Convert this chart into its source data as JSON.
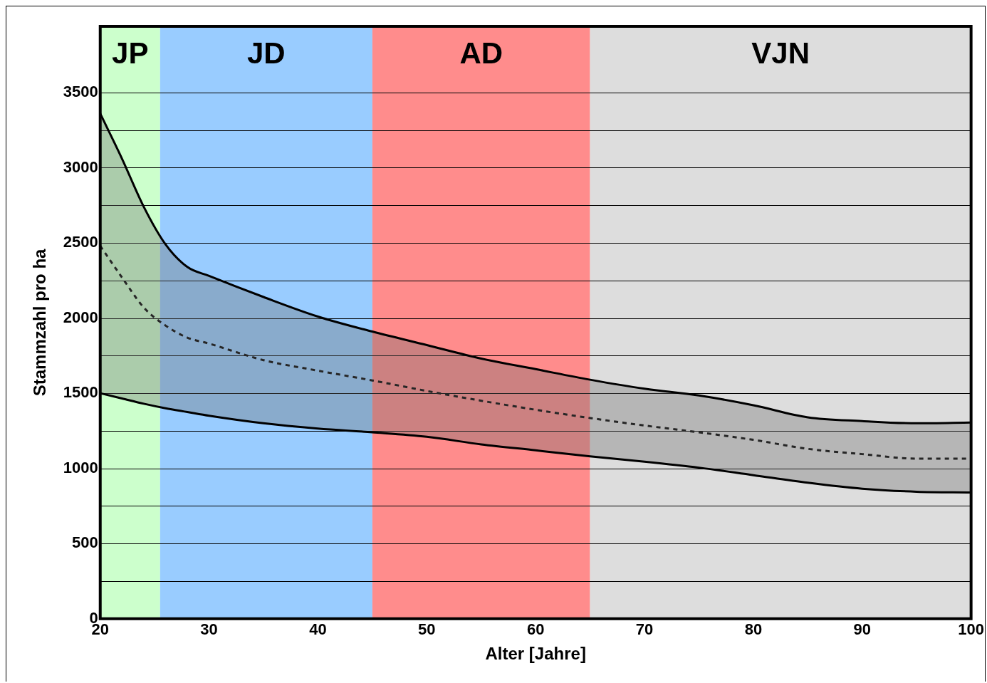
{
  "chart_data": {
    "type": "line",
    "xlabel": "Alter [Jahre]",
    "ylabel": "Stammzahl pro ha",
    "x": [
      20,
      22,
      24,
      26,
      28,
      30,
      35,
      40,
      45,
      50,
      55,
      60,
      65,
      70,
      75,
      80,
      85,
      90,
      95,
      100
    ],
    "series": [
      {
        "color": "#000000",
        "values": [
          3360,
          3060,
          2740,
          2490,
          2340,
          2280,
          2140,
          2010,
          1910,
          1820,
          1730,
          1660,
          1590,
          1530,
          1485,
          1420,
          1340,
          1315,
          1300,
          1305
        ]
      },
      {
        "color": "#000000",
        "values": [
          1500,
          1465,
          1430,
          1400,
          1375,
          1350,
          1300,
          1265,
          1240,
          1210,
          1160,
          1120,
          1080,
          1045,
          1005,
          955,
          905,
          865,
          845,
          840
        ]
      },
      {
        "color": "#000000",
        "line_style": "dashed",
        "values": [
          2480,
          2270,
          2070,
          1950,
          1870,
          1830,
          1720,
          1650,
          1585,
          1515,
          1450,
          1390,
          1335,
          1285,
          1240,
          1190,
          1130,
          1095,
          1065,
          1065
        ],
        "lower": [
          1500,
          1465,
          1430,
          1400,
          1375,
          1350,
          1300,
          1265,
          1240,
          1210,
          1160,
          1120,
          1080,
          1045,
          1005,
          955,
          905,
          865,
          845,
          840
        ],
        "upper": [
          3360,
          3060,
          2740,
          2490,
          2340,
          2280,
          2140,
          2010,
          1910,
          1820,
          1730,
          1660,
          1590,
          1530,
          1485,
          1420,
          1340,
          1315,
          1300,
          1305
        ]
      }
    ],
    "bands": [
      {
        "axis": "x",
        "from": 20,
        "to": 25.5,
        "label": "JP",
        "color": "#ccffcc"
      },
      {
        "axis": "x",
        "from": 25.5,
        "to": 45,
        "label": "JD",
        "color": "#99ccff"
      },
      {
        "axis": "x",
        "from": 45,
        "to": 65,
        "label": "AD",
        "color": "#ff8c8c"
      },
      {
        "axis": "x",
        "from": 65,
        "to": 100,
        "label": "VJN",
        "color": "#dddddd"
      }
    ],
    "xlim": [
      20,
      100
    ],
    "xticks": [
      20,
      30,
      40,
      50,
      60,
      70,
      80,
      90,
      100
    ],
    "ylim": [
      0,
      3940
    ],
    "yticks": [
      0,
      {
        "value": 250,
        "label": null
      },
      500,
      {
        "value": 750,
        "label": null
      },
      1000,
      {
        "value": 1250,
        "label": null
      },
      1500,
      {
        "value": 1750,
        "label": null
      },
      2000,
      {
        "value": 2250,
        "label": null
      },
      2500,
      {
        "value": 2750,
        "label": null
      },
      3000,
      {
        "value": 3250,
        "label": null
      },
      3500
    ],
    "grid": "y",
    "legend": false,
    "marker": "none"
  }
}
